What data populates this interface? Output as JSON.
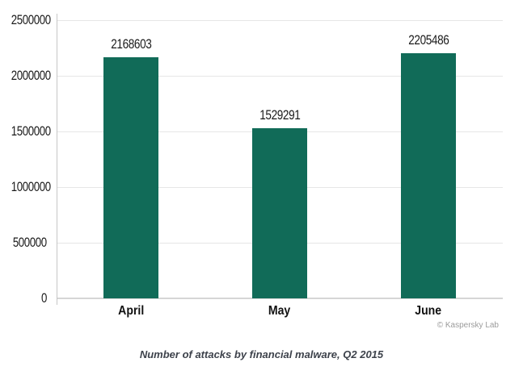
{
  "chart_data": {
    "type": "bar",
    "categories": [
      "April",
      "May",
      "June"
    ],
    "values": [
      2168603,
      1529291,
      2205486
    ],
    "value_labels": [
      "2168603",
      "1529291",
      "2205486"
    ],
    "title": "Number of attacks by financial malware, Q2 2015",
    "xlabel": "",
    "ylabel": "",
    "ylim": [
      0,
      2500000
    ],
    "yticks": [
      0,
      500000,
      1000000,
      1500000,
      2000000,
      2500000
    ],
    "ytick_labels": [
      "0",
      "500000",
      "1000000",
      "1500000",
      "2000000",
      "2500000"
    ],
    "grid": true,
    "legend_position": "none",
    "bar_color": "#116b58"
  },
  "caption": "Number of attacks by financial malware, Q2 2015",
  "copyright": "© Kaspersky Lab",
  "colors": {
    "bar": "#116b58",
    "gridline": "#e6e6e6",
    "axis_line": "#c6c6c6",
    "label_text": "#1b1b1b",
    "caption_text": "#3d424b",
    "copyright_text": "#9b9b9b"
  }
}
